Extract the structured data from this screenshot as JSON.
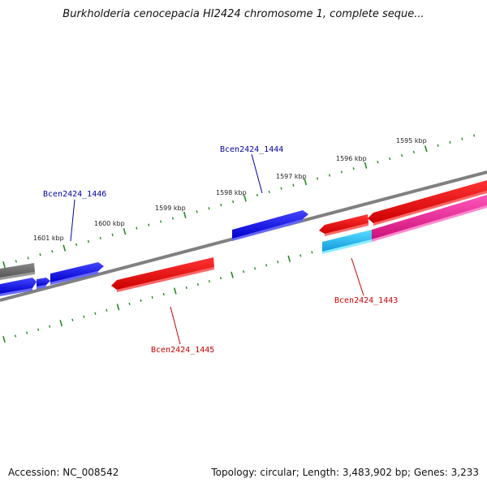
{
  "title": "Burkholderia cenocepacia HI2424 chromosome 1, complete seque...",
  "footer": {
    "accession": "Accession: NC_008542",
    "topology": "Topology: circular; Length: 3,483,902 bp; Genes: 3,233"
  },
  "colors": {
    "background": "#ffffff",
    "backbone": "#808080",
    "ticks": "#228B22",
    "gene_blue": "#0000ee",
    "gene_red": "#ee0000",
    "gene_cyan": "#22bbee",
    "gene_pink": "#ee2299",
    "gene_gray": "#666666",
    "label_blue": "#0000aa",
    "label_red": "#cc0000"
  },
  "scale_labels": [
    "1601 kbp",
    "1600 kbp",
    "1599 kbp",
    "1598 kbp",
    "1597 kbp",
    "1596 kbp",
    "1595 kbp"
  ],
  "gene_labels": {
    "g1446": "Bcen2424_1446",
    "g1444": "Bcen2424_1444",
    "g1443": "Bcen2424_1443",
    "g1445": "Bcen2424_1445"
  }
}
